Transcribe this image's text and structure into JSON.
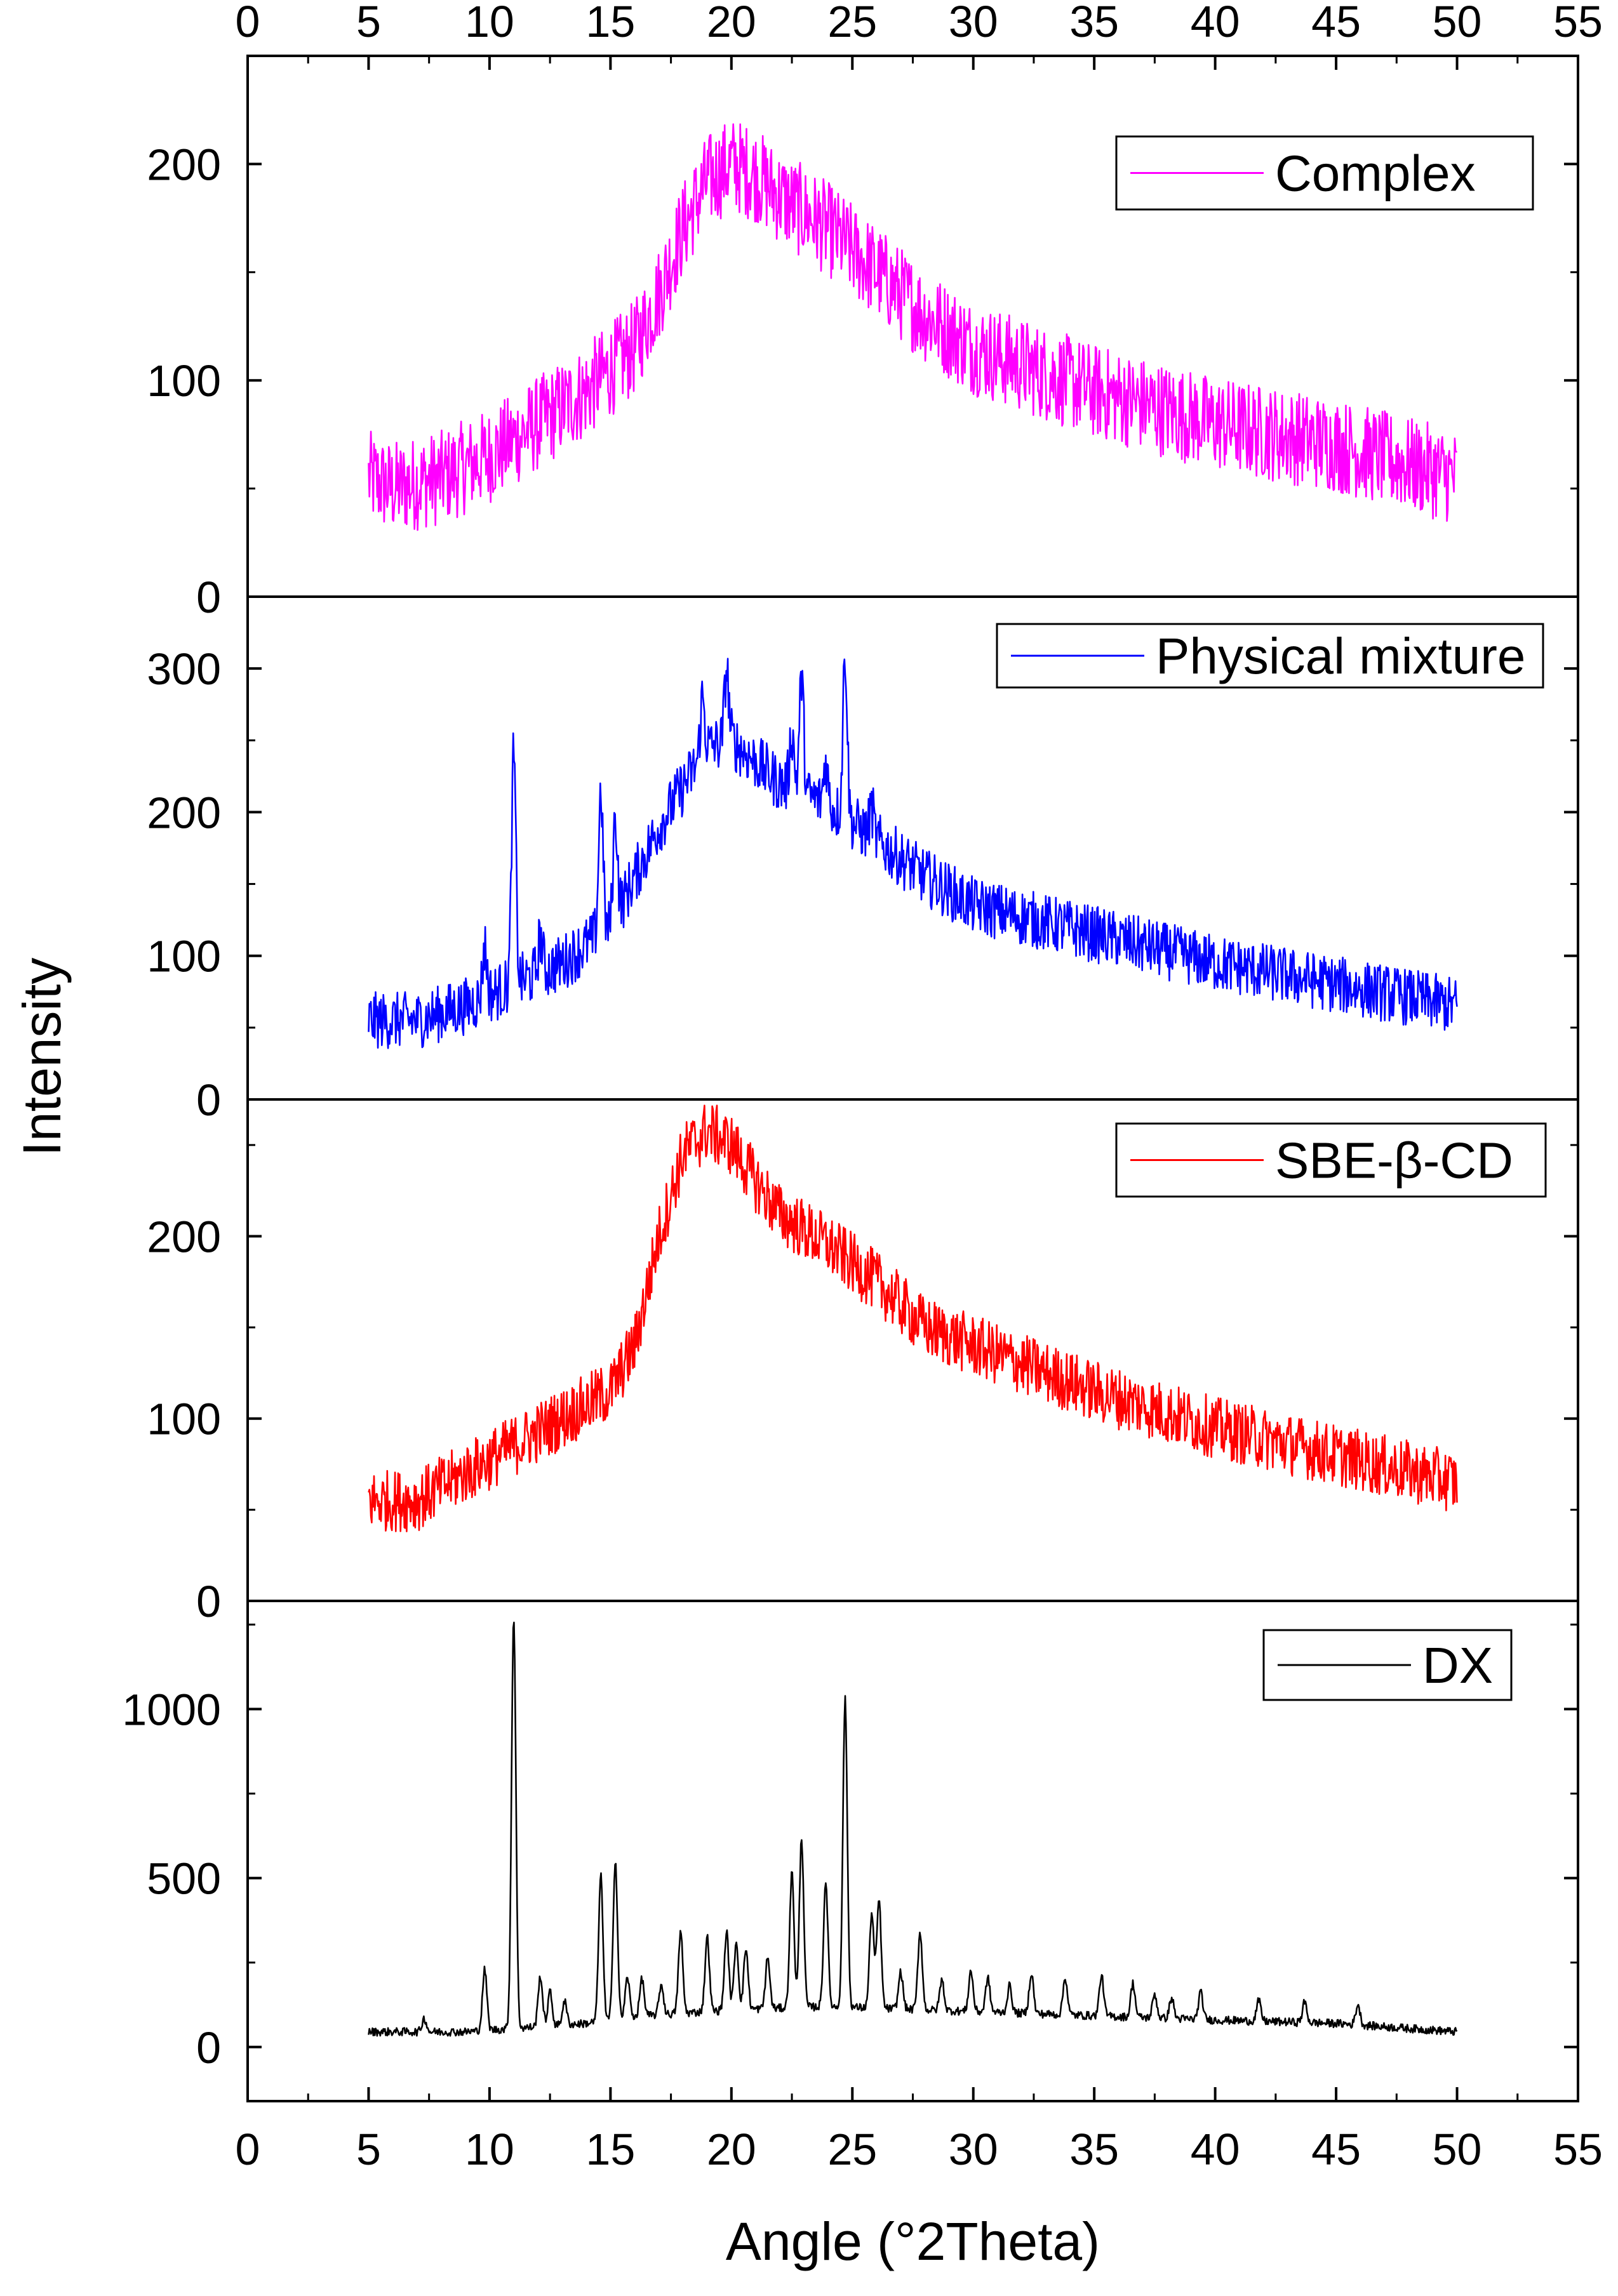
{
  "chart_data": {
    "type": "line",
    "title": "",
    "xlabel": "Angle (°2Theta)",
    "ylabel": "Intensity",
    "xlim": [
      0,
      55
    ],
    "x_ticks": [
      0,
      5,
      10,
      15,
      20,
      25,
      30,
      35,
      40,
      45,
      50,
      55
    ],
    "x_tick_labels": [
      "0",
      "5",
      "10",
      "15",
      "20",
      "25",
      "30",
      "35",
      "40",
      "45",
      "50",
      "55"
    ],
    "x_range_data": [
      5,
      50
    ],
    "grid": false,
    "panels": [
      {
        "id": "complex",
        "legend": "Complex",
        "legend_position": "top-right",
        "color": "#FF00FF",
        "ylim": [
          0,
          250
        ],
        "y_ticks": [
          0,
          100,
          200
        ],
        "y_tick_labels": [
          "0",
          "100",
          "200"
        ],
        "noise": 22,
        "profile": [
          [
            5,
            55
          ],
          [
            6,
            50
          ],
          [
            8,
            55
          ],
          [
            10,
            65
          ],
          [
            12,
            80
          ],
          [
            14,
            95
          ],
          [
            16,
            115
          ],
          [
            17,
            140
          ],
          [
            18,
            170
          ],
          [
            19,
            192
          ],
          [
            20,
            200
          ],
          [
            21,
            195
          ],
          [
            22,
            185
          ],
          [
            24,
            170
          ],
          [
            26,
            150
          ],
          [
            28,
            130
          ],
          [
            30,
            115
          ],
          [
            35,
            95
          ],
          [
            40,
            80
          ],
          [
            45,
            70
          ],
          [
            50,
            55
          ]
        ],
        "peaks": []
      },
      {
        "id": "physical-mixture",
        "legend": "Physical mixture",
        "legend_position": "top-right",
        "color": "#0000FF",
        "ylim": [
          0,
          350
        ],
        "y_ticks": [
          0,
          100,
          200,
          300
        ],
        "y_tick_labels": [
          "0",
          "100",
          "200",
          "300"
        ],
        "noise": 20,
        "profile": [
          [
            5,
            55
          ],
          [
            7,
            55
          ],
          [
            9,
            65
          ],
          [
            11,
            80
          ],
          [
            13,
            95
          ],
          [
            15,
            120
          ],
          [
            17,
            190
          ],
          [
            19,
            245
          ],
          [
            20,
            250
          ],
          [
            22,
            220
          ],
          [
            24,
            205
          ],
          [
            26,
            180
          ],
          [
            28,
            155
          ],
          [
            30,
            135
          ],
          [
            35,
            115
          ],
          [
            40,
            95
          ],
          [
            45,
            80
          ],
          [
            50,
            65
          ]
        ],
        "peaks": [
          [
            9.8,
            35
          ],
          [
            11.0,
            160
          ],
          [
            12.1,
            25
          ],
          [
            14.6,
            100
          ],
          [
            15.2,
            70
          ],
          [
            18.8,
            40
          ],
          [
            19.8,
            50
          ],
          [
            22.5,
            40
          ],
          [
            22.9,
            80
          ],
          [
            23.9,
            30
          ],
          [
            24.7,
            115
          ],
          [
            25.8,
            20
          ]
        ]
      },
      {
        "id": "sbe-beta-cd",
        "legend": "SBE-β-CD",
        "legend_position": "top-right",
        "color": "#FF0000",
        "ylim": [
          0,
          275
        ],
        "y_ticks": [
          0,
          100,
          200
        ],
        "y_tick_labels": [
          "0",
          "100",
          "200"
        ],
        "noise": 17,
        "profile": [
          [
            5,
            55
          ],
          [
            7,
            55
          ],
          [
            9,
            70
          ],
          [
            11,
            85
          ],
          [
            13,
            100
          ],
          [
            15,
            115
          ],
          [
            16,
            140
          ],
          [
            17,
            200
          ],
          [
            18,
            245
          ],
          [
            19,
            258
          ],
          [
            20,
            250
          ],
          [
            21,
            230
          ],
          [
            22,
            212
          ],
          [
            24,
            195
          ],
          [
            26,
            175
          ],
          [
            28,
            150
          ],
          [
            30,
            140
          ],
          [
            35,
            115
          ],
          [
            40,
            95
          ],
          [
            45,
            80
          ],
          [
            50,
            65
          ]
        ],
        "peaks": []
      },
      {
        "id": "dx",
        "legend": "DX",
        "legend_position": "top-right",
        "color": "#000000",
        "ylim": [
          -160,
          1320
        ],
        "y_ticks": [
          0,
          500,
          1000
        ],
        "y_tick_labels": [
          "0",
          "500",
          "1000"
        ],
        "noise": 12,
        "profile": [
          [
            5,
            45
          ],
          [
            9,
            45
          ],
          [
            12,
            60
          ],
          [
            14,
            70
          ],
          [
            16,
            90
          ],
          [
            20,
            110
          ],
          [
            24,
            120
          ],
          [
            28,
            110
          ],
          [
            32,
            100
          ],
          [
            36,
            90
          ],
          [
            40,
            80
          ],
          [
            45,
            70
          ],
          [
            50,
            45
          ]
        ],
        "peaks": [
          [
            7.3,
            40
          ],
          [
            9.8,
            180
          ],
          [
            11.0,
            1220
          ],
          [
            12.1,
            150
          ],
          [
            12.5,
            100
          ],
          [
            13.1,
            70
          ],
          [
            14.6,
            430
          ],
          [
            15.2,
            470
          ],
          [
            15.7,
            120
          ],
          [
            16.3,
            110
          ],
          [
            17.1,
            90
          ],
          [
            17.9,
            240
          ],
          [
            19.0,
            220
          ],
          [
            19.8,
            230
          ],
          [
            20.2,
            200
          ],
          [
            20.6,
            180
          ],
          [
            21.5,
            150
          ],
          [
            22.5,
            400
          ],
          [
            22.9,
            500
          ],
          [
            23.9,
            370
          ],
          [
            24.7,
            910
          ],
          [
            25.8,
            280
          ],
          [
            26.1,
            320
          ],
          [
            27.0,
            110
          ],
          [
            27.8,
            230
          ],
          [
            28.7,
            90
          ],
          [
            29.9,
            120
          ],
          [
            30.6,
            100
          ],
          [
            31.5,
            80
          ],
          [
            32.4,
            120
          ],
          [
            33.8,
            110
          ],
          [
            35.3,
            120
          ],
          [
            36.6,
            100
          ],
          [
            37.5,
            70
          ],
          [
            38.2,
            60
          ],
          [
            39.4,
            80
          ],
          [
            41.8,
            60
          ],
          [
            43.7,
            60
          ],
          [
            45.9,
            60
          ]
        ]
      }
    ]
  }
}
